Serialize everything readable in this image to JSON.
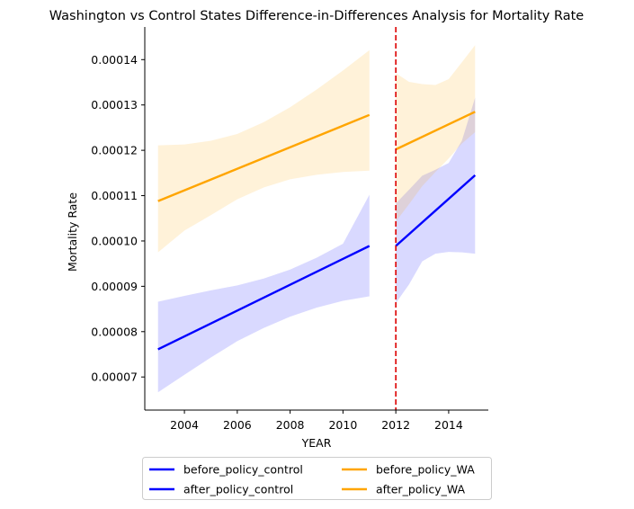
{
  "chart_data": {
    "type": "line",
    "title": "Washington vs Control States Difference-in-Differences Analysis for Mortality Rate",
    "xlabel": "YEAR",
    "ylabel": "Mortality Rate",
    "xlim": [
      2002.5,
      2015.5
    ],
    "ylim": [
      6.27e-05,
      0.0001472
    ],
    "xticks": [
      2004,
      2006,
      2008,
      2010,
      2012,
      2014
    ],
    "xtick_labels": [
      "2004",
      "2006",
      "2008",
      "2010",
      "2012",
      "2014"
    ],
    "yticks": [
      7e-05,
      8e-05,
      9e-05,
      0.0001,
      0.00011,
      0.00012,
      0.00013,
      0.00014
    ],
    "ytick_labels": [
      "0.00007",
      "0.00008",
      "0.00009",
      "0.00010",
      "0.00011",
      "0.00012",
      "0.00013",
      "0.00014"
    ],
    "policy_line": {
      "x": 2012,
      "color": "#dd0000",
      "style": "dashed"
    },
    "series": [
      {
        "name": "before_policy_control",
        "color": "#0000ff",
        "band_color": "#d8d8ff",
        "x": [
          2003,
          2011
        ],
        "y": [
          7.61e-05,
          9.89e-05
        ],
        "ci": {
          "x": [
            2003,
            2004,
            2005,
            2006,
            2007,
            2008,
            2009,
            2010,
            2011
          ],
          "lower": [
            6.66e-05,
            7.05e-05,
            7.43e-05,
            7.79e-05,
            8.08e-05,
            8.33e-05,
            8.53e-05,
            8.68e-05,
            8.78e-05
          ],
          "upper": [
            8.66e-05,
            8.79e-05,
            8.91e-05,
            9.02e-05,
            9.17e-05,
            9.37e-05,
            9.63e-05,
            9.94e-05,
            0.0001102
          ]
        }
      },
      {
        "name": "before_policy_WA",
        "color": "#ffa500",
        "band_color": "#ffefd9",
        "x": [
          2003,
          2011
        ],
        "y": [
          0.0001088,
          0.0001278
        ],
        "ci": {
          "x": [
            2003,
            2004,
            2005,
            2006,
            2007,
            2008,
            2009,
            2010,
            2011
          ],
          "lower": [
            9.75e-05,
            0.0001023,
            0.0001057,
            0.0001092,
            0.0001118,
            0.0001136,
            0.0001146,
            0.0001152,
            0.0001155
          ],
          "upper": [
            0.0001211,
            0.0001213,
            0.0001221,
            0.0001236,
            0.0001262,
            0.0001295,
            0.0001334,
            0.0001376,
            0.0001421
          ]
        }
      },
      {
        "name": "after_policy_control",
        "color": "#0000ff",
        "band_color": "#d8d8ff",
        "x": [
          2012,
          2015
        ],
        "y": [
          9.89e-05,
          0.0001145
        ],
        "ci": {
          "x": [
            2012,
            2012.5,
            2013,
            2013.5,
            2014,
            2014.5,
            2015
          ],
          "lower": [
            8.63e-05,
            9.04e-05,
            9.55e-05,
            9.72e-05,
            9.76e-05,
            9.75e-05,
            9.72e-05
          ],
          "upper": [
            0.0001083,
            0.0001113,
            0.0001144,
            0.0001157,
            0.0001172,
            0.0001221,
            0.0001316
          ]
        }
      },
      {
        "name": "after_policy_WA",
        "color": "#ffa500",
        "band_color": "#ffefd9",
        "x": [
          2012,
          2015
        ],
        "y": [
          0.0001202,
          0.0001285
        ],
        "ci": {
          "x": [
            2012,
            2012.5,
            2013,
            2013.5,
            2014,
            2014.5,
            2015
          ],
          "lower": [
            0.0001043,
            0.0001081,
            0.0001121,
            0.0001152,
            0.0001182,
            0.0001215,
            0.000124
          ],
          "upper": [
            0.000137,
            0.0001351,
            0.0001346,
            0.0001344,
            0.0001357,
            0.0001394,
            0.0001432
          ]
        }
      }
    ],
    "legend": {
      "placement": "bottom-center",
      "columns": 2,
      "entries": [
        {
          "label": "before_policy_control",
          "color": "#0000ff"
        },
        {
          "label": "after_policy_control",
          "color": "#0000ff"
        },
        {
          "label": "before_policy_WA",
          "color": "#ffa500"
        },
        {
          "label": "after_policy_WA",
          "color": "#ffa500"
        }
      ]
    }
  }
}
